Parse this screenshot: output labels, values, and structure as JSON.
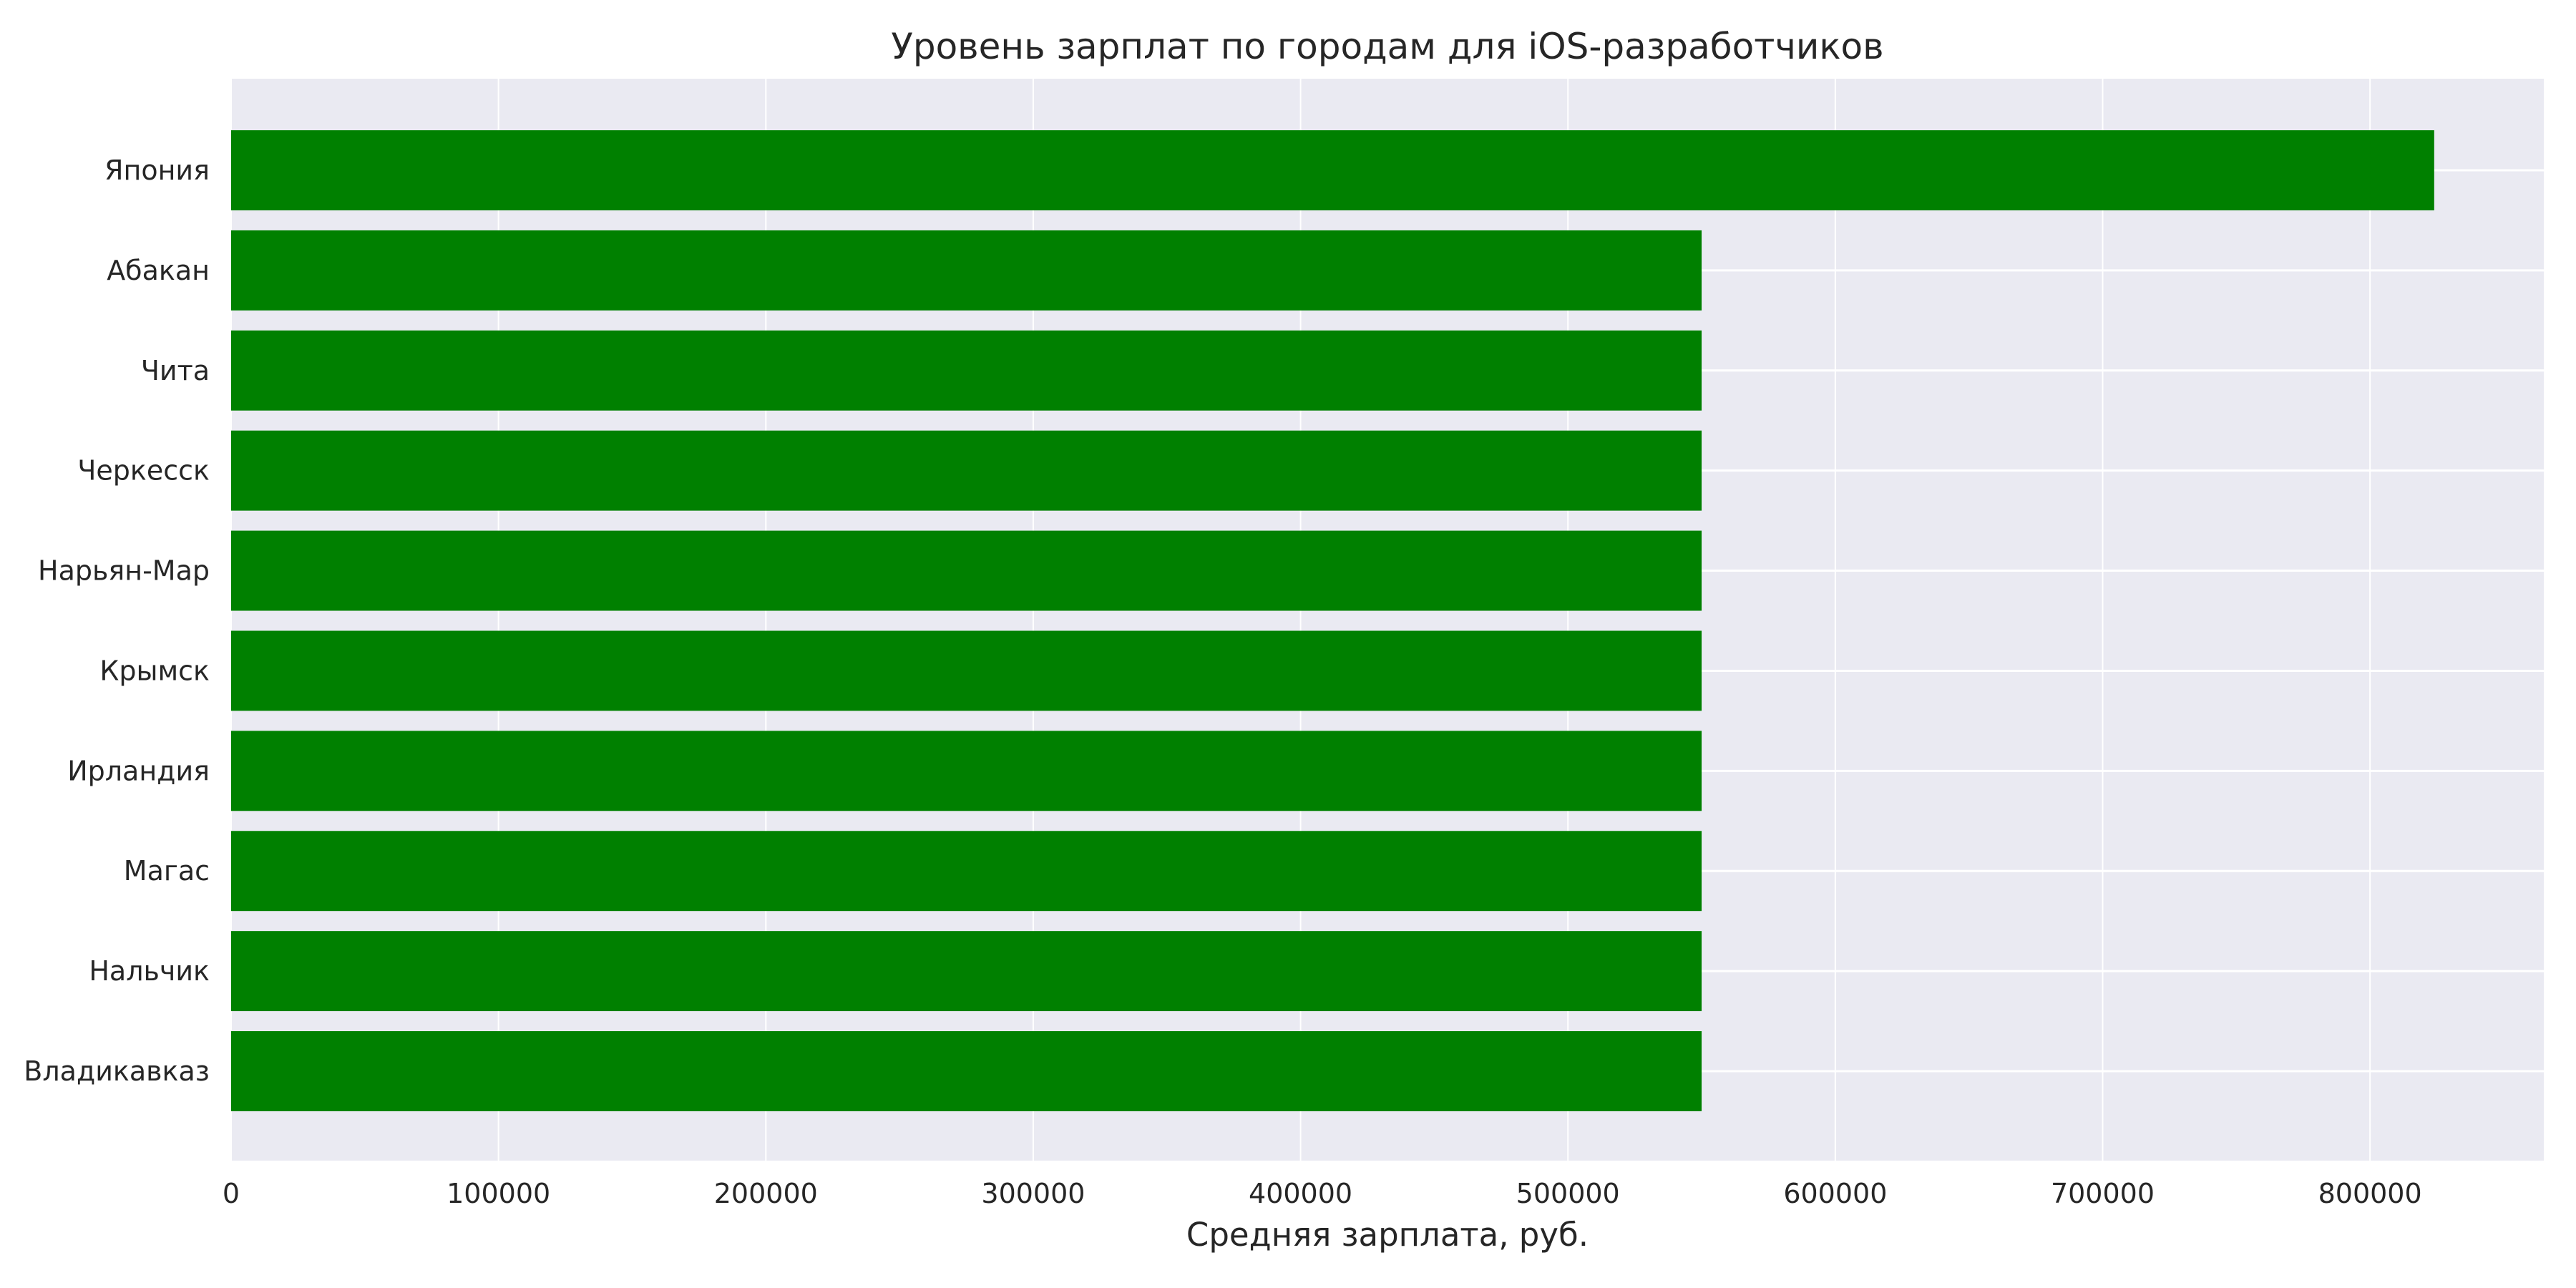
{
  "chart_data": {
    "type": "bar",
    "orientation": "horizontal",
    "title": "Уровень зарплат по городам для iOS-разработчиков",
    "xlabel": "Средняя зарплата, руб.",
    "ylabel": "",
    "categories": [
      "Япония",
      "Абакан",
      "Чита",
      "Черкесск",
      "Нарьян-Мар",
      "Крымск",
      "Ирландия",
      "Магас",
      "Нальчик",
      "Владикавказ"
    ],
    "values": [
      824000,
      550000,
      550000,
      550000,
      550000,
      550000,
      550000,
      550000,
      550000,
      550000
    ],
    "xlim": [
      0,
      865000
    ],
    "xticks": [
      "0",
      "100000",
      "200000",
      "300000",
      "400000",
      "500000",
      "600000",
      "700000",
      "800000"
    ],
    "grid": true,
    "colors": {
      "bar": "#008000",
      "plot_background": "#eaeaf2",
      "grid": "#ffffff",
      "text": "#262626"
    }
  }
}
